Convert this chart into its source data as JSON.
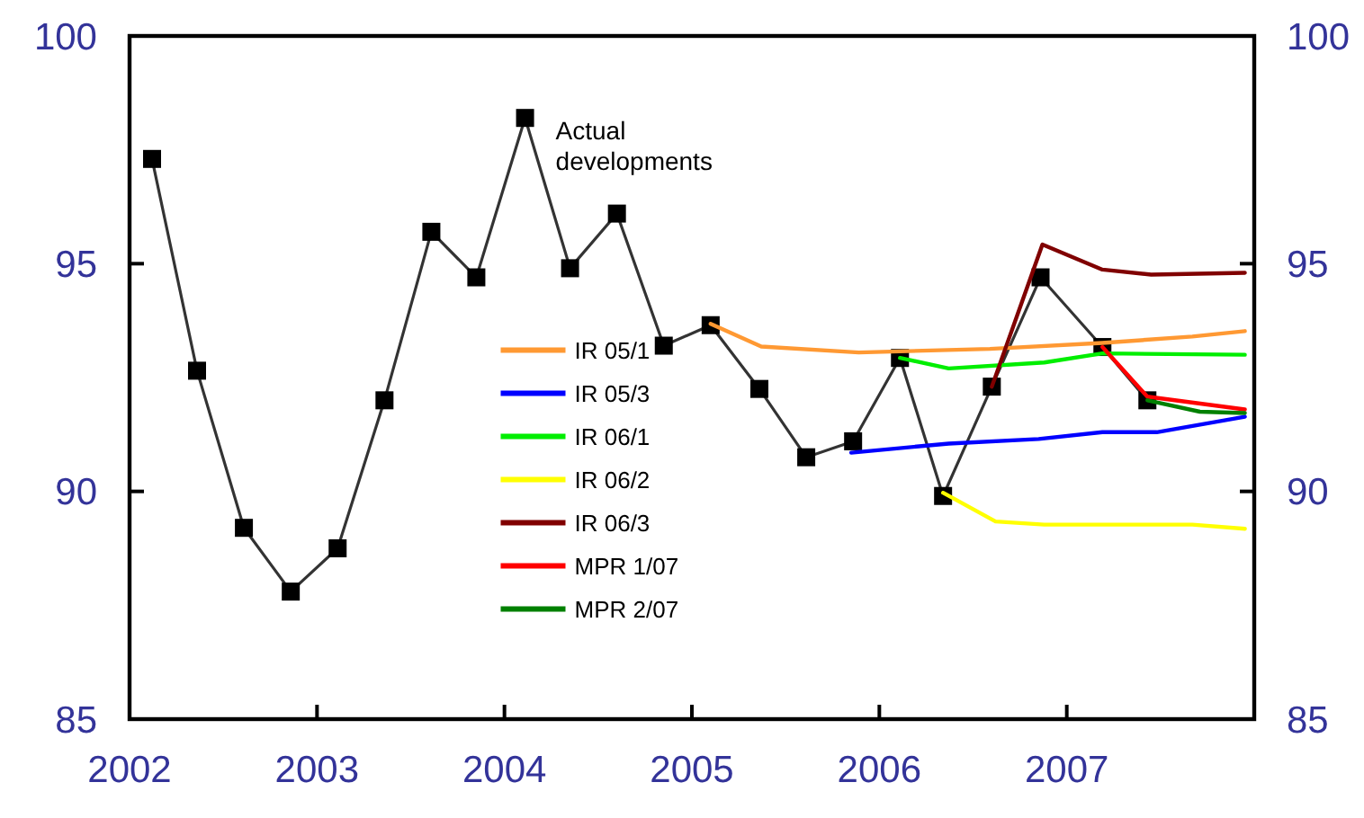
{
  "chart_data": {
    "type": "line",
    "xlim": [
      2002,
      2008
    ],
    "xticks": [
      2002,
      2003,
      2004,
      2005,
      2006,
      2007
    ],
    "ylim": [
      85,
      100
    ],
    "yticks": [
      85,
      90,
      95,
      100
    ],
    "y2lim": [
      85,
      100
    ],
    "y2ticks": [
      85,
      90,
      95,
      100
    ],
    "grid": false,
    "legend": "center",
    "line_style": "solid",
    "series": [
      {
        "name": "Actual developments",
        "color": "#333333",
        "marker": "square",
        "x": [
          2002.12,
          2002.36,
          2002.61,
          2002.86,
          2003.11,
          2003.36,
          2003.61,
          2003.85,
          2004.11,
          2004.35,
          2004.6,
          2004.85,
          2005.1,
          2005.36,
          2005.61,
          2005.86,
          2006.11,
          2006.34,
          2006.6,
          2006.86,
          2007.19,
          2007.43
        ],
        "values": [
          97.3,
          92.65,
          89.2,
          87.8,
          88.75,
          92.0,
          95.7,
          94.7,
          98.2,
          94.9,
          96.1,
          93.2,
          93.65,
          92.25,
          90.75,
          91.1,
          92.93,
          89.9,
          92.3,
          94.7,
          93.17,
          92.0
        ]
      },
      {
        "name": "IR 05/1",
        "color": "#ff9933",
        "marker": "none",
        "x": [
          2005.1,
          2005.37,
          2005.89,
          2006.59,
          2007.19,
          2007.67,
          2007.95
        ],
        "values": [
          93.68,
          93.18,
          93.05,
          93.13,
          93.26,
          93.4,
          93.52
        ]
      },
      {
        "name": "IR 05/3",
        "color": "#0000ff",
        "marker": "none",
        "x": [
          2005.85,
          2006.37,
          2006.85,
          2007.19,
          2007.48,
          2007.95
        ],
        "values": [
          90.85,
          91.05,
          91.15,
          91.3,
          91.3,
          91.64
        ]
      },
      {
        "name": "IR 06/1",
        "color": "#00ee00",
        "marker": "none",
        "x": [
          2006.11,
          2006.37,
          2006.88,
          2007.19,
          2007.95
        ],
        "values": [
          92.93,
          92.7,
          92.83,
          93.03,
          93.0
        ]
      },
      {
        "name": "IR 06/2",
        "color": "#ffff00",
        "marker": "none",
        "x": [
          2006.34,
          2006.62,
          2006.88,
          2007.67,
          2007.95
        ],
        "values": [
          89.97,
          89.34,
          89.27,
          89.27,
          89.18
        ]
      },
      {
        "name": "IR 06/3",
        "color": "#800000",
        "marker": "none",
        "x": [
          2006.6,
          2006.87,
          2007.19,
          2007.45,
          2007.95
        ],
        "values": [
          92.3,
          95.42,
          94.87,
          94.76,
          94.8
        ]
      },
      {
        "name": "MPR 1/07",
        "color": "#ff0000",
        "marker": "none",
        "x": [
          2007.19,
          2007.43,
          2007.95
        ],
        "values": [
          93.17,
          92.08,
          91.8
        ]
      },
      {
        "name": "MPR 2/07",
        "color": "#008000",
        "marker": "none",
        "x": [
          2007.43,
          2007.71,
          2007.95
        ],
        "values": [
          92.0,
          91.75,
          91.72
        ]
      }
    ]
  }
}
